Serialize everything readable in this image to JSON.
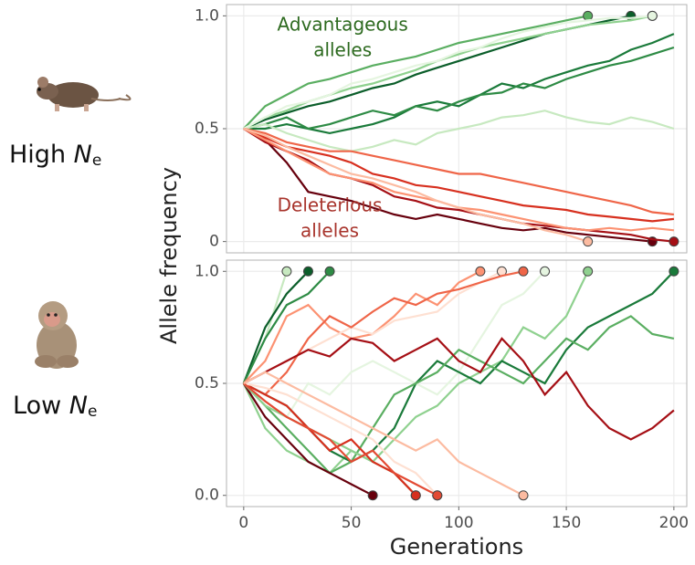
{
  "left_labels": [
    {
      "prefix": "High ",
      "var": "N",
      "sub": "e"
    },
    {
      "prefix": "Low ",
      "var": "N",
      "sub": "e"
    }
  ],
  "chart_data": [
    {
      "type": "line",
      "ylabel": "Allele frequency",
      "annotations": [
        {
          "text": [
            "Advantageous",
            "alleles"
          ],
          "color": "#2d6a1f",
          "x": 46,
          "y": 0.9
        },
        {
          "text": [
            "Deleterious",
            "alleles"
          ],
          "color": "#a8342c",
          "x": 40,
          "y": 0.1
        }
      ],
      "x": [
        0,
        10,
        20,
        30,
        40,
        50,
        60,
        70,
        80,
        90,
        100,
        110,
        120,
        130,
        140,
        150,
        160,
        170,
        180,
        190,
        200
      ],
      "xlim": [
        -8,
        206
      ],
      "ylim": [
        -0.05,
        1.05
      ],
      "xticks": [
        0,
        50,
        100,
        150,
        200
      ],
      "yticks": [
        0,
        0.5,
        {
          "value": 1,
          "label": "1.0"
        }
      ],
      "grid": true,
      "series": [
        {
          "color": "#0b5e2a",
          "values": [
            0.5,
            0.54,
            0.57,
            0.6,
            0.62,
            0.65,
            0.68,
            0.7,
            0.74,
            0.77,
            0.8,
            0.83,
            0.86,
            0.89,
            0.92,
            0.94,
            0.96,
            0.98,
            1.0,
            null,
            null
          ]
        },
        {
          "color": "#1a7a3a",
          "values": [
            0.5,
            0.5,
            0.52,
            0.5,
            0.48,
            0.5,
            0.52,
            0.55,
            0.6,
            0.62,
            0.6,
            0.65,
            0.7,
            0.68,
            0.72,
            0.75,
            0.78,
            0.8,
            0.85,
            0.88,
            0.92
          ]
        },
        {
          "color": "#2e8b45",
          "values": [
            0.5,
            0.52,
            0.55,
            0.5,
            0.52,
            0.55,
            0.58,
            0.56,
            0.6,
            0.58,
            0.62,
            0.65,
            0.66,
            0.7,
            0.68,
            0.72,
            0.75,
            0.78,
            0.8,
            0.83,
            0.86
          ]
        },
        {
          "color": "#5aae61",
          "values": [
            0.5,
            0.6,
            0.65,
            0.7,
            0.72,
            0.75,
            0.78,
            0.8,
            0.82,
            0.85,
            0.88,
            0.9,
            0.92,
            0.94,
            0.96,
            0.98,
            1.0,
            null,
            null,
            null,
            null
          ]
        },
        {
          "color": "#8fd18f",
          "values": [
            0.5,
            0.55,
            0.58,
            0.62,
            0.65,
            0.68,
            0.7,
            0.73,
            0.76,
            0.8,
            0.83,
            0.86,
            0.88,
            0.9,
            0.92,
            0.94,
            0.96,
            0.97,
            0.98,
            1.0,
            null
          ]
        },
        {
          "color": "#c7e9c0",
          "values": [
            0.5,
            0.52,
            0.48,
            0.45,
            0.42,
            0.4,
            0.42,
            0.45,
            0.43,
            0.48,
            0.5,
            0.52,
            0.55,
            0.56,
            0.58,
            0.55,
            0.53,
            0.52,
            0.55,
            0.53,
            0.5
          ]
        },
        {
          "color": "#e5f5e0",
          "values": [
            0.5,
            0.55,
            0.6,
            0.62,
            0.65,
            0.7,
            0.72,
            0.75,
            0.78,
            0.8,
            0.84,
            0.86,
            0.9,
            0.93,
            0.95,
            0.97,
            0.98,
            0.99,
            0.99,
            1.0,
            null
          ]
        },
        {
          "color": "#67000d",
          "values": [
            0.5,
            0.45,
            0.35,
            0.22,
            0.2,
            0.18,
            0.15,
            0.12,
            0.1,
            0.12,
            0.1,
            0.08,
            0.06,
            0.05,
            0.06,
            0.04,
            0.03,
            0.02,
            0.01,
            0.0,
            null
          ]
        },
        {
          "color": "#a50f15",
          "values": [
            0.5,
            0.44,
            0.4,
            0.36,
            0.3,
            0.28,
            0.25,
            0.2,
            0.18,
            0.15,
            0.14,
            0.12,
            0.1,
            0.08,
            0.07,
            0.06,
            0.05,
            0.04,
            0.03,
            0.01,
            0.0
          ]
        },
        {
          "color": "#d7301f",
          "values": [
            0.5,
            0.46,
            0.42,
            0.4,
            0.38,
            0.35,
            0.3,
            0.28,
            0.25,
            0.24,
            0.22,
            0.2,
            0.18,
            0.16,
            0.15,
            0.14,
            0.12,
            0.11,
            0.1,
            0.09,
            0.1
          ]
        },
        {
          "color": "#ef6548",
          "values": [
            0.5,
            0.48,
            0.44,
            0.42,
            0.4,
            0.4,
            0.38,
            0.36,
            0.34,
            0.32,
            0.3,
            0.3,
            0.28,
            0.26,
            0.24,
            0.22,
            0.2,
            0.18,
            0.16,
            0.13,
            0.12
          ]
        },
        {
          "color": "#fc9272",
          "values": [
            0.5,
            0.45,
            0.4,
            0.35,
            0.3,
            0.28,
            0.26,
            0.22,
            0.2,
            0.18,
            0.15,
            0.14,
            0.12,
            0.1,
            0.08,
            0.06,
            0.05,
            0.06,
            0.05,
            0.06,
            0.05
          ]
        },
        {
          "color": "#fcbba1",
          "values": [
            0.5,
            0.47,
            0.42,
            0.38,
            0.34,
            0.3,
            0.28,
            0.25,
            0.22,
            0.18,
            0.15,
            0.12,
            0.1,
            0.08,
            0.05,
            0.03,
            0.0,
            null,
            null,
            null,
            null
          ]
        }
      ]
    },
    {
      "type": "line",
      "xlabel": "Generations",
      "x": [
        0,
        10,
        20,
        30,
        40,
        50,
        60,
        70,
        80,
        90,
        100,
        110,
        120,
        130,
        140,
        150,
        160,
        170,
        180,
        190,
        200
      ],
      "xlim": [
        -8,
        206
      ],
      "ylim": [
        -0.05,
        1.05
      ],
      "xticks": [
        0,
        50,
        100,
        150,
        200
      ],
      "yticks": [
        {
          "value": 0,
          "label": "0.0"
        },
        0.5,
        {
          "value": 1,
          "label": "1.0"
        }
      ],
      "grid": true,
      "series": [
        {
          "color": "#c7e9c0",
          "values": [
            0.5,
            0.7,
            1.0,
            null,
            null,
            null,
            null,
            null,
            null,
            null,
            null,
            null,
            null,
            null,
            null,
            null,
            null,
            null,
            null,
            null,
            null
          ]
        },
        {
          "color": "#0b5e2a",
          "values": [
            0.5,
            0.75,
            0.9,
            1.0,
            null,
            null,
            null,
            null,
            null,
            null,
            null,
            null,
            null,
            null,
            null,
            null,
            null,
            null,
            null,
            null,
            null
          ]
        },
        {
          "color": "#2e8b45",
          "values": [
            0.5,
            0.7,
            0.85,
            0.9,
            1.0,
            null,
            null,
            null,
            null,
            null,
            null,
            null,
            null,
            null,
            null,
            null,
            null,
            null,
            null,
            null,
            null
          ]
        },
        {
          "color": "#fc9272",
          "values": [
            0.5,
            0.6,
            0.8,
            0.85,
            0.75,
            0.7,
            0.72,
            0.8,
            0.9,
            0.85,
            0.95,
            1.0,
            null,
            null,
            null,
            null,
            null,
            null,
            null,
            null,
            null
          ]
        },
        {
          "color": "#fee0d2",
          "values": [
            0.5,
            0.55,
            0.6,
            0.65,
            0.7,
            0.75,
            0.72,
            0.78,
            0.8,
            0.82,
            0.9,
            0.95,
            1.0,
            null,
            null,
            null,
            null,
            null,
            null,
            null,
            null
          ]
        },
        {
          "color": "#ef6548",
          "values": [
            0.5,
            0.45,
            0.55,
            0.7,
            0.8,
            0.75,
            0.82,
            0.88,
            0.85,
            0.9,
            0.92,
            0.95,
            0.98,
            1.0,
            null,
            null,
            null,
            null,
            null,
            null,
            null
          ]
        },
        {
          "color": "#e5f5e0",
          "values": [
            0.5,
            0.4,
            0.35,
            0.5,
            0.45,
            0.55,
            0.6,
            0.55,
            0.5,
            0.45,
            0.55,
            0.7,
            0.85,
            0.9,
            1.0,
            null,
            null,
            null,
            null,
            null,
            null
          ]
        },
        {
          "color": "#8fd18f",
          "values": [
            0.5,
            0.3,
            0.2,
            0.15,
            0.1,
            0.2,
            0.15,
            0.25,
            0.35,
            0.4,
            0.5,
            0.55,
            0.6,
            0.75,
            0.7,
            0.8,
            1.0,
            null,
            null,
            null,
            null
          ]
        },
        {
          "color": "#1a7a3a",
          "values": [
            0.5,
            0.45,
            0.4,
            0.3,
            0.2,
            0.15,
            0.2,
            0.3,
            0.5,
            0.6,
            0.55,
            0.5,
            0.6,
            0.55,
            0.5,
            0.65,
            0.75,
            0.8,
            0.85,
            0.9,
            1.0
          ]
        },
        {
          "color": "#5aae61",
          "values": [
            0.5,
            0.4,
            0.3,
            0.2,
            0.1,
            0.15,
            0.3,
            0.45,
            0.5,
            0.55,
            0.65,
            0.6,
            0.55,
            0.5,
            0.6,
            0.7,
            0.65,
            0.75,
            0.8,
            0.72,
            0.7
          ]
        },
        {
          "color": "#a50f15",
          "values": [
            0.5,
            0.55,
            0.6,
            0.65,
            0.62,
            0.7,
            0.68,
            0.6,
            0.65,
            0.7,
            0.6,
            0.55,
            0.7,
            0.6,
            0.45,
            0.55,
            0.4,
            0.3,
            0.25,
            0.3,
            0.38
          ]
        },
        {
          "color": "#67000d",
          "values": [
            0.5,
            0.35,
            0.25,
            0.15,
            0.1,
            0.05,
            0.0,
            null,
            null,
            null,
            null,
            null,
            null,
            null,
            null,
            null,
            null,
            null,
            null,
            null,
            null
          ]
        },
        {
          "color": "#8fd18f",
          "values": [
            0.5,
            0.4,
            0.35,
            0.3,
            0.25,
            0.2,
            0.15,
            0.1,
            0.0,
            null,
            null,
            null,
            null,
            null,
            null,
            null,
            null,
            null,
            null,
            null,
            null
          ]
        },
        {
          "color": "#d7301f",
          "values": [
            0.5,
            0.45,
            0.4,
            0.3,
            0.2,
            0.25,
            0.15,
            0.1,
            0.0,
            null,
            null,
            null,
            null,
            null,
            null,
            null,
            null,
            null,
            null,
            null,
            null
          ]
        },
        {
          "color": "#fee0d2",
          "values": [
            0.5,
            0.48,
            0.45,
            0.4,
            0.35,
            0.3,
            0.25,
            0.15,
            0.1,
            0.0,
            null,
            null,
            null,
            null,
            null,
            null,
            null,
            null,
            null,
            null,
            null
          ]
        },
        {
          "color": "#e34a33",
          "values": [
            0.5,
            0.42,
            0.35,
            0.3,
            0.25,
            0.15,
            0.2,
            0.1,
            0.05,
            0.0,
            null,
            null,
            null,
            null,
            null,
            null,
            null,
            null,
            null,
            null,
            null
          ]
        },
        {
          "color": "#fcbba1",
          "values": [
            0.5,
            0.55,
            0.5,
            0.45,
            0.4,
            0.35,
            0.3,
            0.25,
            0.2,
            0.25,
            0.15,
            0.1,
            0.05,
            0.0,
            null,
            null,
            null,
            null,
            null,
            null,
            null
          ]
        }
      ]
    }
  ]
}
